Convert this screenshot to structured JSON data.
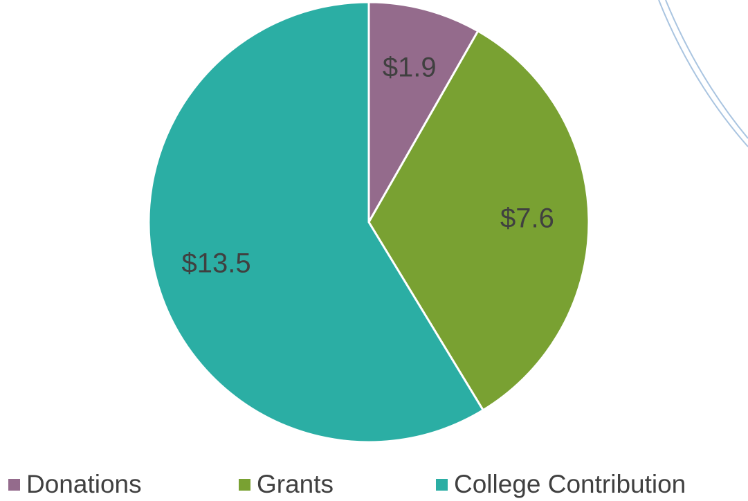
{
  "chart_data": {
    "type": "pie",
    "categories": [
      "Donations",
      "Grants",
      "College Contribution"
    ],
    "values": [
      1.9,
      7.6,
      13.5
    ],
    "value_labels": [
      "$1.9",
      "$7.6",
      "$13.5"
    ],
    "colors": [
      "#946b8c",
      "#79a132",
      "#2baea4"
    ],
    "legend": "bottom"
  }
}
